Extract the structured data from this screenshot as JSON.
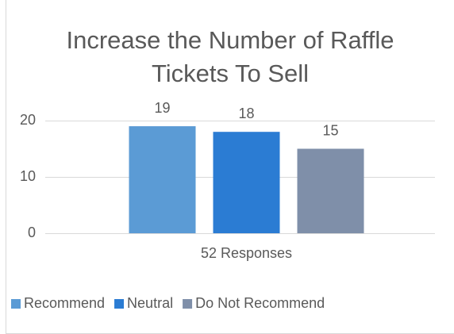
{
  "chart_data": {
    "type": "bar",
    "title": "Increase the Number of Raffle Tickets To Sell",
    "categories": [
      "52 Responses"
    ],
    "series": [
      {
        "name": "Recommend",
        "color": "#5b9bd5",
        "values": [
          19
        ]
      },
      {
        "name": "Neutral",
        "color": "#2b7cd3",
        "values": [
          18
        ]
      },
      {
        "name": "Do Not Recommend",
        "color": "#7f8fa9",
        "values": [
          15
        ]
      }
    ],
    "ylim": [
      0,
      20
    ],
    "yticks": [
      0,
      10,
      20
    ],
    "grid": true,
    "legend": "bottom"
  }
}
